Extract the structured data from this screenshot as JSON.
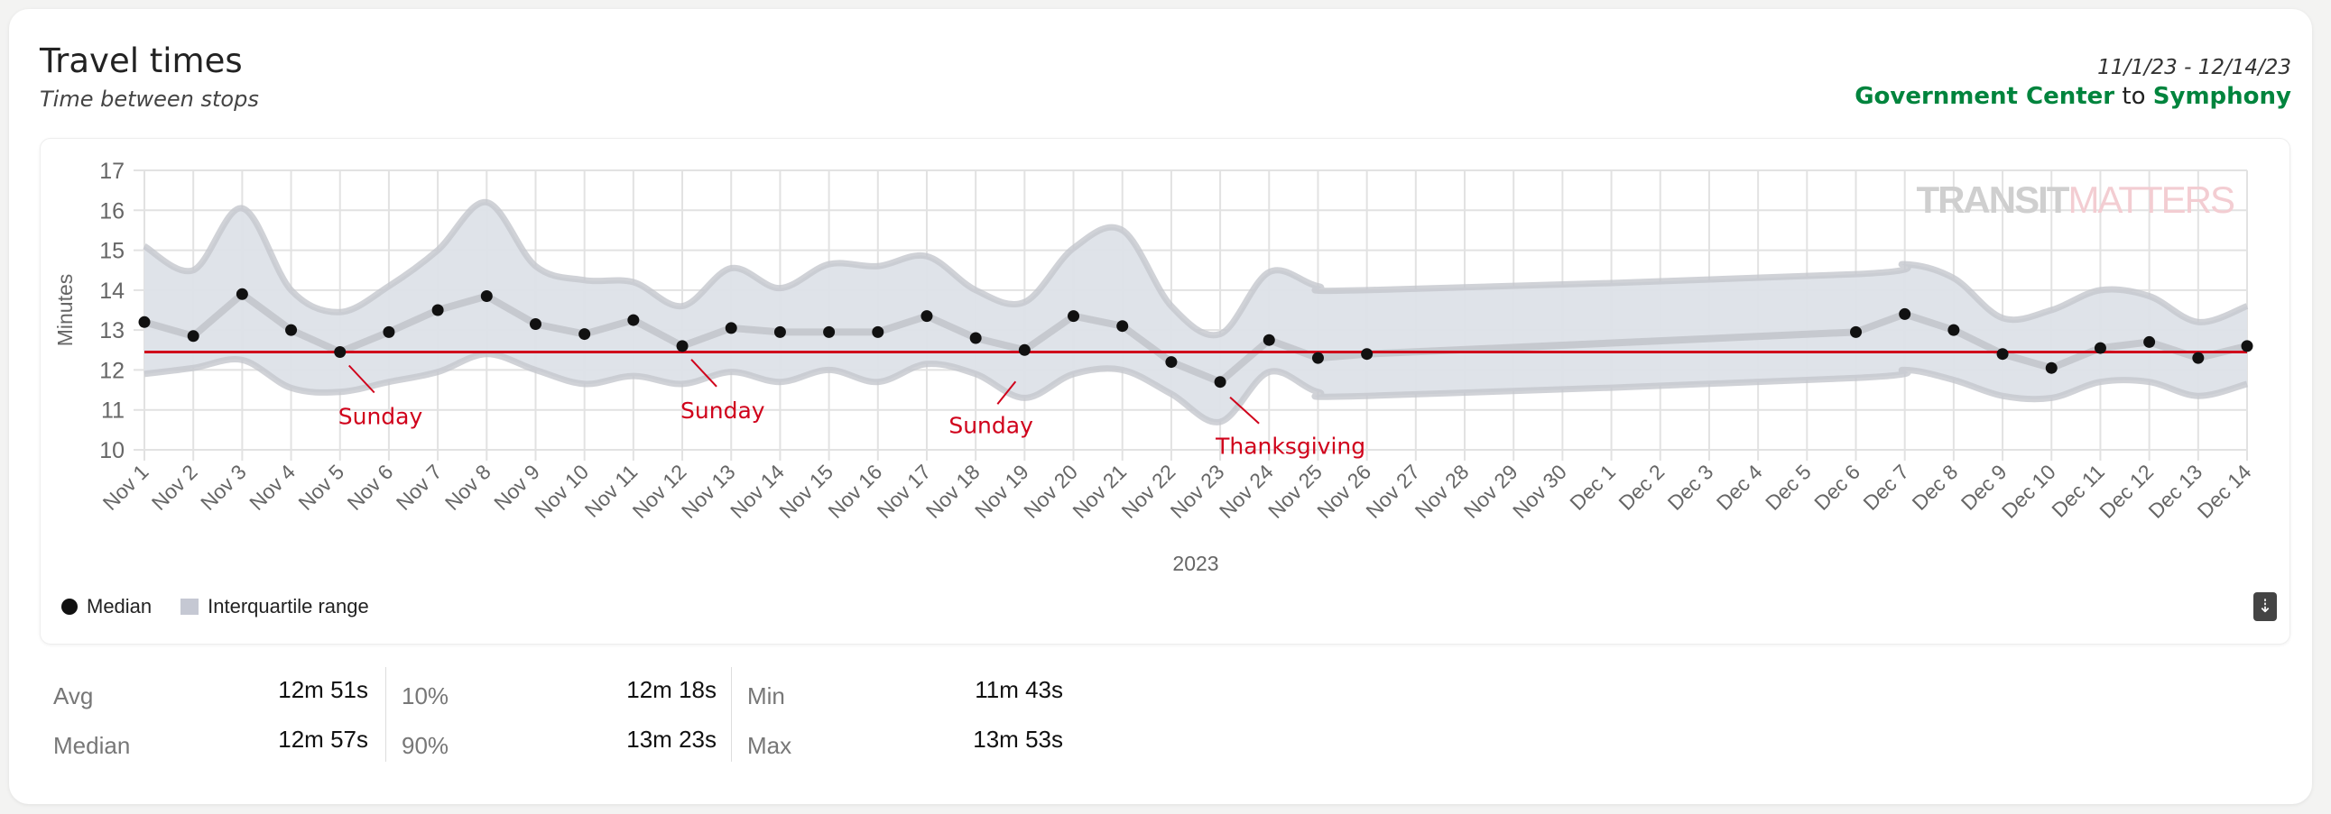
{
  "header": {
    "title": "Travel times",
    "subtitle": "Time between stops",
    "date_range": "11/1/23 - 12/14/23",
    "from": "Government Center",
    "to_word": "to",
    "to": "Symphony"
  },
  "legend": {
    "median": "Median",
    "iqr": "Interquartile range"
  },
  "watermark": {
    "part1": "TRANSIT",
    "part2": "MATTERS"
  },
  "colors": {
    "station": "#00843d",
    "benchmark": "#d0021b",
    "band": "#dde1e8",
    "median": "#111111"
  },
  "stats": {
    "avg": {
      "label": "Avg",
      "value": "12m 51s"
    },
    "median": {
      "label": "Median",
      "value": "12m 57s"
    },
    "p10": {
      "label": "10%",
      "value": "12m 18s"
    },
    "p90": {
      "label": "90%",
      "value": "13m 23s"
    },
    "min": {
      "label": "Min",
      "value": "11m 43s"
    },
    "max": {
      "label": "Max",
      "value": "13m 53s"
    }
  },
  "chart_data": {
    "type": "line",
    "ylabel": "Minutes",
    "xlabel": "2023",
    "ylim": [
      10,
      17
    ],
    "yticks": [
      10,
      11,
      12,
      13,
      14,
      15,
      16,
      17
    ],
    "xticks": [
      "Nov 1",
      "Nov 2",
      "Nov 3",
      "Nov 4",
      "Nov 5",
      "Nov 6",
      "Nov 7",
      "Nov 8",
      "Nov 9",
      "Nov 10",
      "Nov 11",
      "Nov 12",
      "Nov 13",
      "Nov 14",
      "Nov 15",
      "Nov 16",
      "Nov 17",
      "Nov 18",
      "Nov 19",
      "Nov 20",
      "Nov 21",
      "Nov 22",
      "Nov 23",
      "Nov 24",
      "Nov 25",
      "Nov 26",
      "Nov 27",
      "Nov 28",
      "Nov 29",
      "Nov 30",
      "Dec 1",
      "Dec 2",
      "Dec 3",
      "Dec 4",
      "Dec 5",
      "Dec 6",
      "Dec 7",
      "Dec 8",
      "Dec 9",
      "Dec 10",
      "Dec 11",
      "Dec 12",
      "Dec 13",
      "Dec 14"
    ],
    "benchmark": 12.45,
    "points": [
      {
        "day": 0,
        "median": 13.2,
        "q1": 11.9,
        "q3": 15.1
      },
      {
        "day": 1,
        "median": 12.85,
        "q1": 12.05,
        "q3": 14.5
      },
      {
        "day": 2,
        "median": 13.9,
        "q1": 12.25,
        "q3": 16.05
      },
      {
        "day": 3,
        "median": 13.0,
        "q1": 11.55,
        "q3": 14.0
      },
      {
        "day": 4,
        "median": 12.45,
        "q1": 11.45,
        "q3": 13.45
      },
      {
        "day": 5,
        "median": 12.95,
        "q1": 11.7,
        "q3": 14.1
      },
      {
        "day": 6,
        "median": 13.5,
        "q1": 11.95,
        "q3": 15.0
      },
      {
        "day": 7,
        "median": 13.85,
        "q1": 12.4,
        "q3": 16.2
      },
      {
        "day": 8,
        "median": 13.15,
        "q1": 12.0,
        "q3": 14.6
      },
      {
        "day": 9,
        "median": 12.9,
        "q1": 11.65,
        "q3": 14.25
      },
      {
        "day": 10,
        "median": 13.25,
        "q1": 11.85,
        "q3": 14.2
      },
      {
        "day": 11,
        "median": 12.6,
        "q1": 11.65,
        "q3": 13.6
      },
      {
        "day": 12,
        "median": 13.05,
        "q1": 11.95,
        "q3": 14.55
      },
      {
        "day": 13,
        "median": 12.95,
        "q1": 11.7,
        "q3": 14.05
      },
      {
        "day": 14,
        "median": 12.95,
        "q1": 12.0,
        "q3": 14.65
      },
      {
        "day": 15,
        "median": 12.95,
        "q1": 11.7,
        "q3": 14.6
      },
      {
        "day": 16,
        "median": 13.35,
        "q1": 12.15,
        "q3": 14.85
      },
      {
        "day": 17,
        "median": 12.8,
        "q1": 11.9,
        "q3": 14.0
      },
      {
        "day": 18,
        "median": 12.5,
        "q1": 11.3,
        "q3": 13.7
      },
      {
        "day": 19,
        "median": 13.35,
        "q1": 11.9,
        "q3": 15.05
      },
      {
        "day": 20,
        "median": 13.1,
        "q1": 12.0,
        "q3": 15.5
      },
      {
        "day": 21,
        "median": 12.2,
        "q1": 11.4,
        "q3": 13.6
      },
      {
        "day": 22,
        "median": 11.7,
        "q1": 10.7,
        "q3": 12.9
      },
      {
        "day": 23,
        "median": 12.75,
        "q1": 11.95,
        "q3": 14.45
      },
      {
        "day": 24,
        "median": 12.3,
        "q1": 11.45,
        "q3": 14.1
      },
      {
        "day": 25,
        "median": 12.4,
        "q1": 11.35,
        "q3": 14.0
      },
      {
        "day": 35,
        "median": 12.95,
        "q1": 11.8,
        "q3": 14.4
      },
      {
        "day": 36,
        "median": 13.4,
        "q1": 12.0,
        "q3": 14.65
      },
      {
        "day": 37,
        "median": 13.0,
        "q1": 11.75,
        "q3": 14.3
      },
      {
        "day": 38,
        "median": 12.4,
        "q1": 11.35,
        "q3": 13.3
      },
      {
        "day": 39,
        "median": 12.05,
        "q1": 11.3,
        "q3": 13.5
      },
      {
        "day": 40,
        "median": 12.55,
        "q1": 11.7,
        "q3": 14.0
      },
      {
        "day": 41,
        "median": 12.7,
        "q1": 11.7,
        "q3": 13.85
      },
      {
        "day": 42,
        "median": 12.3,
        "q1": 11.35,
        "q3": 13.2
      },
      {
        "day": 43,
        "median": 12.6,
        "q1": 11.65,
        "q3": 13.6
      }
    ],
    "annotations": [
      {
        "day": 4,
        "value": 12.45,
        "text": "Sunday"
      },
      {
        "day": 11,
        "value": 12.6,
        "text": "Sunday"
      },
      {
        "day": 18,
        "value": 12.5,
        "text": "Sunday"
      },
      {
        "day": 22,
        "value": 11.7,
        "text": "Thanksgiving"
      }
    ]
  }
}
